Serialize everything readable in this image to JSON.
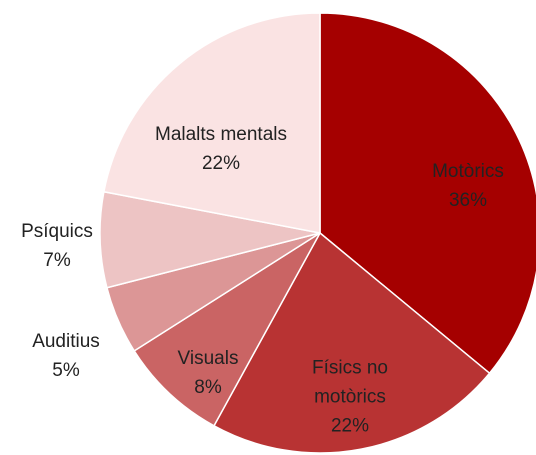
{
  "chart_data": {
    "type": "pie",
    "categories": [
      "Motòrics",
      "Físics no motòrics",
      "Visuals",
      "Auditius",
      "Psíquics",
      "Malalts mentals"
    ],
    "values": [
      36,
      22,
      8,
      5,
      7,
      22
    ],
    "value_labels": [
      "36%",
      "22%",
      "8%",
      "5%",
      "7%",
      "22%"
    ],
    "colors": [
      "#a50000",
      "#b83333",
      "#ca6464",
      "#dc9696",
      "#edc4c4",
      "#fae3e3"
    ]
  }
}
